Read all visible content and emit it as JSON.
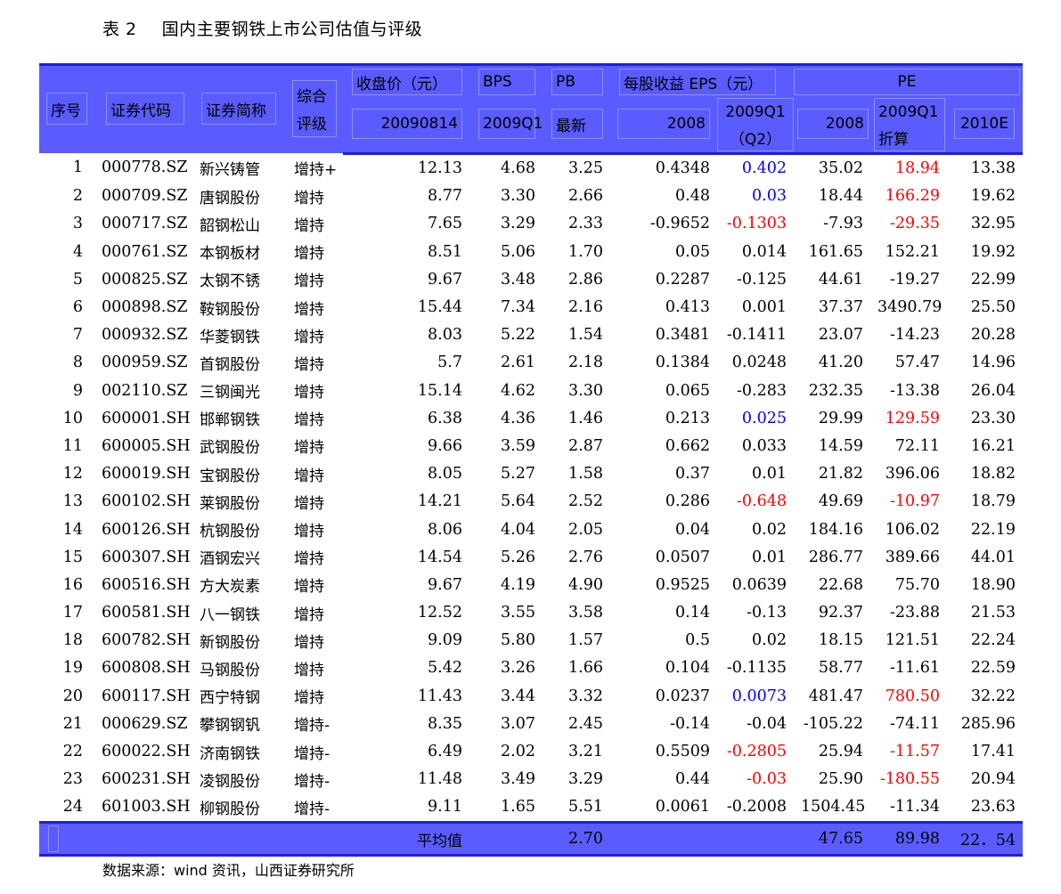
{
  "title": {
    "label": "表 2",
    "text": "国内主要钢铁上市公司估值与评级"
  },
  "headers": {
    "seq": "序号",
    "code": "证券代码",
    "name": "证券简称",
    "rating_l1": "综合",
    "rating_l2": "评级",
    "close": "收盘价（元）",
    "close_sub": "20090814",
    "bps": "BPS",
    "bps_sub": "2009Q1",
    "pb": "PB",
    "pb_sub": "最新",
    "eps": "每股收益 EPS（元）",
    "eps_2008": "2008",
    "eps_q1_l1": "2009Q1",
    "eps_q1_l2": "（Q2）",
    "pe": "PE",
    "pe_2008": "2008",
    "pe_q1_l1": "2009Q1",
    "pe_q1_l2": "折算",
    "pe_2010": "2010E"
  },
  "rows": [
    {
      "seq": "1",
      "code": "000778.SZ",
      "name": "新兴铸管",
      "rating": "增持+",
      "close": "12.13",
      "bps": "4.68",
      "pb": "3.25",
      "eps08": "0.4348",
      "epsq1": "0.402",
      "epsq1_color": "blue",
      "pe08": "35.02",
      "peq1": "18.94",
      "peq1_color": "red",
      "pe10": "13.38"
    },
    {
      "seq": "2",
      "code": "000709.SZ",
      "name": "唐钢股份",
      "rating": "增持",
      "close": "8.77",
      "bps": "3.30",
      "pb": "2.66",
      "eps08": "0.48",
      "epsq1": "0.03",
      "epsq1_color": "blue",
      "pe08": "18.44",
      "peq1": "166.29",
      "peq1_color": "red",
      "pe10": "19.62"
    },
    {
      "seq": "3",
      "code": "000717.SZ",
      "name": "韶钢松山",
      "rating": "增持",
      "close": "7.65",
      "bps": "3.29",
      "pb": "2.33",
      "eps08": "-0.9652",
      "epsq1": "-0.1303",
      "epsq1_color": "red",
      "pe08": "-7.93",
      "peq1": "-29.35",
      "peq1_color": "red",
      "pe10": "32.95"
    },
    {
      "seq": "4",
      "code": "000761.SZ",
      "name": "本钢板材",
      "rating": "增持",
      "close": "8.51",
      "bps": "5.06",
      "pb": "1.70",
      "eps08": "0.05",
      "epsq1": "0.014",
      "epsq1_color": "",
      "pe08": "161.65",
      "peq1": "152.21",
      "peq1_color": "",
      "pe10": "19.92"
    },
    {
      "seq": "5",
      "code": "000825.SZ",
      "name": "太钢不锈",
      "rating": "增持",
      "close": "9.67",
      "bps": "3.48",
      "pb": "2.86",
      "eps08": "0.2287",
      "epsq1": "-0.125",
      "epsq1_color": "",
      "pe08": "44.61",
      "peq1": "-19.27",
      "peq1_color": "",
      "pe10": "22.99"
    },
    {
      "seq": "6",
      "code": "000898.SZ",
      "name": "鞍钢股份",
      "rating": "增持",
      "close": "15.44",
      "bps": "7.34",
      "pb": "2.16",
      "eps08": "0.413",
      "epsq1": "0.001",
      "epsq1_color": "",
      "pe08": "37.37",
      "peq1": "3490.79",
      "peq1_color": "",
      "pe10": "25.50"
    },
    {
      "seq": "7",
      "code": "000932.SZ",
      "name": "华菱钢铁",
      "rating": "增持",
      "close": "8.03",
      "bps": "5.22",
      "pb": "1.54",
      "eps08": "0.3481",
      "epsq1": "-0.1411",
      "epsq1_color": "",
      "pe08": "23.07",
      "peq1": "-14.23",
      "peq1_color": "",
      "pe10": "20.28"
    },
    {
      "seq": "8",
      "code": "000959.SZ",
      "name": "首钢股份",
      "rating": "增持",
      "close": "5.7",
      "bps": "2.61",
      "pb": "2.18",
      "eps08": "0.1384",
      "epsq1": "0.0248",
      "epsq1_color": "",
      "pe08": "41.20",
      "peq1": "57.47",
      "peq1_color": "",
      "pe10": "14.96"
    },
    {
      "seq": "9",
      "code": "002110.SZ",
      "name": "三钢闽光",
      "rating": "增持",
      "close": "15.14",
      "bps": "4.62",
      "pb": "3.30",
      "eps08": "0.065",
      "epsq1": "-0.283",
      "epsq1_color": "",
      "pe08": "232.35",
      "peq1": "-13.38",
      "peq1_color": "",
      "pe10": "26.04"
    },
    {
      "seq": "10",
      "code": "600001.SH",
      "name": "邯郸钢铁",
      "rating": "增持",
      "close": "6.38",
      "bps": "4.36",
      "pb": "1.46",
      "eps08": "0.213",
      "epsq1": "0.025",
      "epsq1_color": "blue",
      "pe08": "29.99",
      "peq1": "129.59",
      "peq1_color": "red",
      "pe10": "23.30"
    },
    {
      "seq": "11",
      "code": "600005.SH",
      "name": "武钢股份",
      "rating": "增持",
      "close": "9.66",
      "bps": "3.59",
      "pb": "2.87",
      "eps08": "0.662",
      "epsq1": "0.033",
      "epsq1_color": "",
      "pe08": "14.59",
      "peq1": "72.11",
      "peq1_color": "",
      "pe10": "16.21"
    },
    {
      "seq": "12",
      "code": "600019.SH",
      "name": "宝钢股份",
      "rating": "增持",
      "close": "8.05",
      "bps": "5.27",
      "pb": "1.58",
      "eps08": "0.37",
      "epsq1": "0.01",
      "epsq1_color": "",
      "pe08": "21.82",
      "peq1": "396.06",
      "peq1_color": "",
      "pe10": "18.82"
    },
    {
      "seq": "13",
      "code": "600102.SH",
      "name": "莱钢股份",
      "rating": "增持",
      "close": "14.21",
      "bps": "5.64",
      "pb": "2.52",
      "eps08": "0.286",
      "epsq1": "-0.648",
      "epsq1_color": "red",
      "pe08": "49.69",
      "peq1": "-10.97",
      "peq1_color": "red",
      "pe10": "18.79"
    },
    {
      "seq": "14",
      "code": "600126.SH",
      "name": "杭钢股份",
      "rating": "增持",
      "close": "8.06",
      "bps": "4.04",
      "pb": "2.05",
      "eps08": "0.04",
      "epsq1": "0.02",
      "epsq1_color": "",
      "pe08": "184.16",
      "peq1": "106.02",
      "peq1_color": "",
      "pe10": "22.19"
    },
    {
      "seq": "15",
      "code": "600307.SH",
      "name": "酒钢宏兴",
      "rating": "增持",
      "close": "14.54",
      "bps": "5.26",
      "pb": "2.76",
      "eps08": "0.0507",
      "epsq1": "0.01",
      "epsq1_color": "",
      "pe08": "286.77",
      "peq1": "389.66",
      "peq1_color": "",
      "pe10": "44.01"
    },
    {
      "seq": "16",
      "code": "600516.SH",
      "name": "方大炭素",
      "rating": "增持",
      "close": "9.67",
      "bps": "4.19",
      "pb": "4.90",
      "eps08": "0.9525",
      "epsq1": "0.0639",
      "epsq1_color": "",
      "pe08": "22.68",
      "peq1": "75.70",
      "peq1_color": "",
      "pe10": "18.90"
    },
    {
      "seq": "17",
      "code": "600581.SH",
      "name": "八一钢铁",
      "rating": "增持",
      "close": "12.52",
      "bps": "3.55",
      "pb": "3.58",
      "eps08": "0.14",
      "epsq1": "-0.13",
      "epsq1_color": "",
      "pe08": "92.37",
      "peq1": "-23.88",
      "peq1_color": "",
      "pe10": "21.53"
    },
    {
      "seq": "18",
      "code": "600782.SH",
      "name": "新钢股份",
      "rating": "增持",
      "close": "9.09",
      "bps": "5.80",
      "pb": "1.57",
      "eps08": "0.5",
      "epsq1": "0.02",
      "epsq1_color": "",
      "pe08": "18.15",
      "peq1": "121.51",
      "peq1_color": "",
      "pe10": "22.24"
    },
    {
      "seq": "19",
      "code": "600808.SH",
      "name": "马钢股份",
      "rating": "增持",
      "close": "5.42",
      "bps": "3.26",
      "pb": "1.66",
      "eps08": "0.104",
      "epsq1": "-0.1135",
      "epsq1_color": "",
      "pe08": "58.77",
      "peq1": "-11.61",
      "peq1_color": "",
      "pe10": "22.59"
    },
    {
      "seq": "20",
      "code": "600117.SH",
      "name": "西宁特钢",
      "rating": "增持",
      "close": "11.43",
      "bps": "3.44",
      "pb": "3.32",
      "eps08": "0.0237",
      "epsq1": "0.0073",
      "epsq1_color": "blue",
      "pe08": "481.47",
      "peq1": "780.50",
      "peq1_color": "red",
      "pe10": "32.22"
    },
    {
      "seq": "21",
      "code": "000629.SZ",
      "name": "攀钢钢钒",
      "rating": "增持-",
      "close": "8.35",
      "bps": "3.07",
      "pb": "2.45",
      "eps08": "-0.14",
      "epsq1": "-0.04",
      "epsq1_color": "",
      "pe08": "-105.22",
      "peq1": "-74.11",
      "peq1_color": "",
      "pe10": "285.96"
    },
    {
      "seq": "22",
      "code": "600022.SH",
      "name": "济南钢铁",
      "rating": "增持-",
      "close": "6.49",
      "bps": "2.02",
      "pb": "3.21",
      "eps08": "0.5509",
      "epsq1": "-0.2805",
      "epsq1_color": "red",
      "pe08": "25.94",
      "peq1": "-11.57",
      "peq1_color": "red",
      "pe10": "17.41"
    },
    {
      "seq": "23",
      "code": "600231.SH",
      "name": "凌钢股份",
      "rating": "增持-",
      "close": "11.48",
      "bps": "3.49",
      "pb": "3.29",
      "eps08": "0.44",
      "epsq1": "-0.03",
      "epsq1_color": "red",
      "pe08": "25.90",
      "peq1": "-180.55",
      "peq1_color": "red",
      "pe10": "20.94"
    },
    {
      "seq": "24",
      "code": "601003.SH",
      "name": "柳钢股份",
      "rating": "增持-",
      "close": "9.11",
      "bps": "1.65",
      "pb": "5.51",
      "eps08": "0.0061",
      "epsq1": "-0.2008",
      "epsq1_color": "",
      "pe08": "1504.45",
      "peq1": "-11.34",
      "peq1_color": "",
      "pe10": "23.63"
    }
  ],
  "footer": {
    "label": "平均值",
    "pb": "2.70",
    "pe08": "47.65",
    "peq1": "89.98",
    "pe10": "22．54"
  },
  "source": "数据来源：wind 资讯，山西证券研究所",
  "colors": {
    "header_bg": "#5a5cff",
    "header_border": "#1e1ee0",
    "positive_eps": "#0000ff",
    "negative": "#ff0000"
  }
}
